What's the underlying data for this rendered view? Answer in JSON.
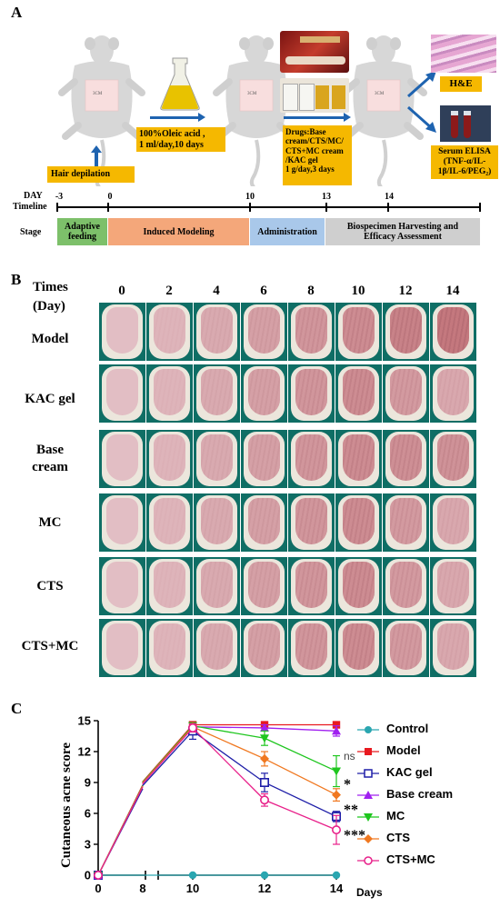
{
  "panelA": {
    "letter": "A",
    "hair_depilation": "Hair depilation",
    "oleic_lines": [
      "100%Oleic acid ,",
      "1 ml/day,10 days"
    ],
    "drugs_lines": [
      "Drugs:Base",
      "cream/CTS/MC/",
      "CTS+MC cream",
      "/KAC gel",
      "1 g/day,3 days"
    ],
    "he_label": "H&E",
    "serum_lines": [
      "Serum ELISA",
      "(TNF-α/IL-",
      "1β/IL-6/PEG₂)"
    ],
    "timeline_label_1": "DAY",
    "timeline_label_2": "Timeline",
    "ticks": [
      "-3",
      "0",
      "10",
      "13",
      "14"
    ],
    "stage_label": "Stage",
    "stages": [
      "Adaptive feeding",
      "Induced Modeling",
      "Administration",
      "Biospecimen Harvesting and Efficacy Assessment"
    ],
    "stage_colors": [
      "#7dc06a",
      "#f4a77a",
      "#a9c8ea",
      "#cfcfcf"
    ],
    "mouse_text": "3CM"
  },
  "panelB": {
    "letter": "B",
    "header_1": "Times",
    "header_2": "(Day)",
    "days": [
      "0",
      "2",
      "4",
      "6",
      "8",
      "10",
      "12",
      "14"
    ],
    "groups": [
      "Model",
      "KAC gel",
      "Base cream",
      "MC",
      "CTS",
      "CTS+MC"
    ]
  },
  "panelC": {
    "letter": "C",
    "ylabel": "Cutaneous acne score",
    "xlabel": "Days",
    "significance": [
      "ns",
      "*",
      "**",
      "***"
    ],
    "legend": [
      "Control",
      "Model",
      "KAC gel",
      "Base cream",
      "MC",
      "CTS",
      "CTS+MC"
    ]
  },
  "chart_data": {
    "type": "line",
    "x": [
      0,
      10,
      12,
      14
    ],
    "xticks": [
      "0",
      "8",
      "10",
      "12",
      "14"
    ],
    "yticks": [
      "0",
      "3",
      "6",
      "9",
      "12",
      "15"
    ],
    "ylim": [
      0,
      15
    ],
    "xlabel": "Days",
    "ylabel": "Cutaneous acne score",
    "series": [
      {
        "name": "Control",
        "color": "#2aa6b0",
        "marker": "circle",
        "values": [
          0,
          0,
          0,
          0
        ],
        "errors": [
          0,
          0,
          0,
          0
        ]
      },
      {
        "name": "Model",
        "color": "#e8191f",
        "marker": "square",
        "values": [
          0,
          14.6,
          14.6,
          14.6
        ],
        "errors": [
          0,
          0.2,
          0.2,
          0.2
        ]
      },
      {
        "name": "KAC gel",
        "color": "#1f1fa8",
        "marker": "open-square",
        "values": [
          0,
          14.0,
          9.0,
          5.7
        ],
        "errors": [
          0,
          0.8,
          0.9,
          0.5
        ]
      },
      {
        "name": "Base cream",
        "color": "#a020f0",
        "marker": "triangle-up",
        "values": [
          0,
          14.4,
          14.3,
          14.0
        ],
        "errors": [
          0,
          0.3,
          0.3,
          0.5
        ]
      },
      {
        "name": "MC",
        "color": "#1ec61e",
        "marker": "triangle-down",
        "values": [
          0,
          14.5,
          13.3,
          10.1
        ],
        "errors": [
          0,
          0.3,
          0.7,
          1.5
        ]
      },
      {
        "name": "CTS",
        "color": "#f07820",
        "marker": "diamond",
        "values": [
          0,
          14.4,
          11.3,
          7.8
        ],
        "errors": [
          0,
          0.3,
          0.7,
          0.6
        ]
      },
      {
        "name": "CTS+MC",
        "color": "#e8208a",
        "marker": "open-circle",
        "values": [
          0,
          14.3,
          7.3,
          4.4
        ],
        "errors": [
          0,
          0.4,
          0.6,
          1.4
        ]
      }
    ]
  }
}
